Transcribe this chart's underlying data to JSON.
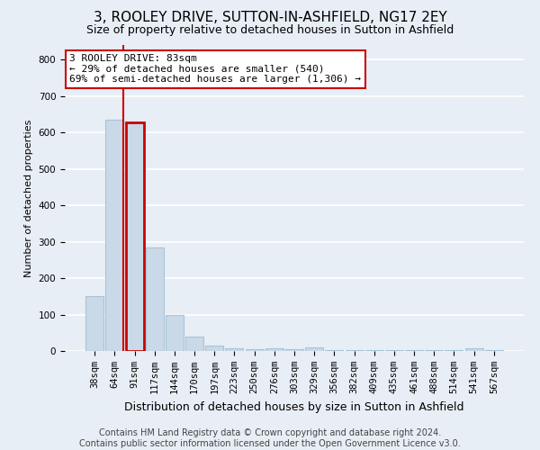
{
  "title": "3, ROOLEY DRIVE, SUTTON-IN-ASHFIELD, NG17 2EY",
  "subtitle": "Size of property relative to detached houses in Sutton in Ashfield",
  "xlabel": "Distribution of detached houses by size in Sutton in Ashfield",
  "ylabel": "Number of detached properties",
  "categories": [
    "38sqm",
    "64sqm",
    "91sqm",
    "117sqm",
    "144sqm",
    "170sqm",
    "197sqm",
    "223sqm",
    "250sqm",
    "276sqm",
    "303sqm",
    "329sqm",
    "356sqm",
    "382sqm",
    "409sqm",
    "435sqm",
    "461sqm",
    "488sqm",
    "514sqm",
    "541sqm",
    "567sqm"
  ],
  "values": [
    150,
    635,
    628,
    285,
    100,
    40,
    15,
    8,
    5,
    8,
    5,
    10,
    3,
    2,
    2,
    2,
    2,
    2,
    2,
    8,
    2
  ],
  "highlight_index": 2,
  "bar_color": "#c9d9e8",
  "bar_edge_color": "#a8c4d8",
  "highlight_edge_color": "#cc0000",
  "annotation_line1": "3 ROOLEY DRIVE: 83sqm",
  "annotation_line2": "← 29% of detached houses are smaller (540)",
  "annotation_line3": "69% of semi-detached houses are larger (1,306) →",
  "annotation_box_color": "white",
  "annotation_box_edge_color": "#cc0000",
  "vline_color": "#cc0000",
  "ylim": [
    0,
    840
  ],
  "yticks": [
    0,
    100,
    200,
    300,
    400,
    500,
    600,
    700,
    800
  ],
  "background_color": "#e8eef5",
  "grid_color": "white",
  "footer_text": "Contains HM Land Registry data © Crown copyright and database right 2024.\nContains public sector information licensed under the Open Government Licence v3.0.",
  "title_fontsize": 11,
  "subtitle_fontsize": 9,
  "xlabel_fontsize": 9,
  "ylabel_fontsize": 8,
  "tick_fontsize": 7.5,
  "annotation_fontsize": 8,
  "footer_fontsize": 7
}
